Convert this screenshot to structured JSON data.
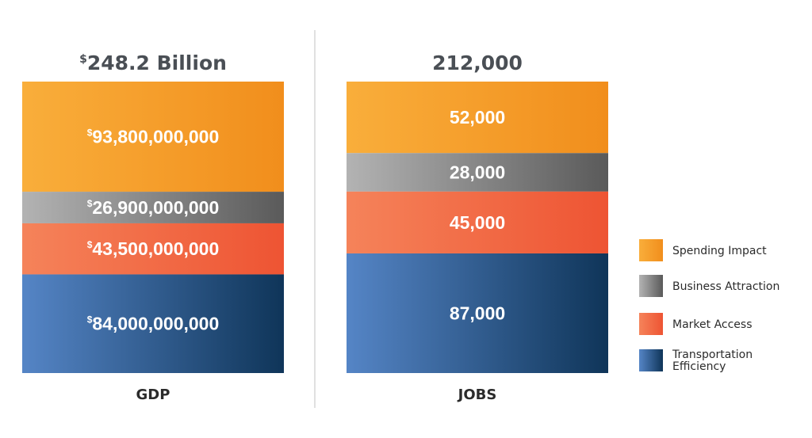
{
  "chart_data": {
    "type": "bar",
    "stacked": true,
    "charts": [
      {
        "category": "GDP",
        "total_label": "248.2 Billion",
        "currency_symbol": "$",
        "segments": [
          {
            "series": "Spending Impact",
            "value": 93800000000,
            "label": "93,800,000,000"
          },
          {
            "series": "Business Attraction",
            "value": 26900000000,
            "label": "26,900,000,000"
          },
          {
            "series": "Market Access",
            "value": 43500000000,
            "label": "43,500,000,000"
          },
          {
            "series": "Transportation Efficiency",
            "value": 84000000000,
            "label": "84,000,000,000"
          }
        ]
      },
      {
        "category": "JOBS",
        "total_label": "212,000",
        "currency_symbol": "",
        "segments": [
          {
            "series": "Spending Impact",
            "value": 52000,
            "label": "52,000"
          },
          {
            "series": "Business Attraction",
            "value": 28000,
            "label": "28,000"
          },
          {
            "series": "Market Access",
            "value": 45000,
            "label": "45,000"
          },
          {
            "series": "Transportation Efficiency",
            "value": 87000,
            "label": "87,000"
          }
        ]
      }
    ],
    "legend": [
      {
        "name": "Spending Impact",
        "color_light": "#f9ae3b",
        "color_dark": "#f18e1c"
      },
      {
        "name": "Business Attraction",
        "color_light": "#b3b3b3",
        "color_dark": "#5a5a5a"
      },
      {
        "name": "Market Access",
        "color_light": "#f5835a",
        "color_dark": "#ee5433"
      },
      {
        "name": "Transportation Efficiency",
        "color_light": "#5585c6",
        "color_dark": "#0f3559"
      }
    ],
    "legend_position": "right"
  }
}
